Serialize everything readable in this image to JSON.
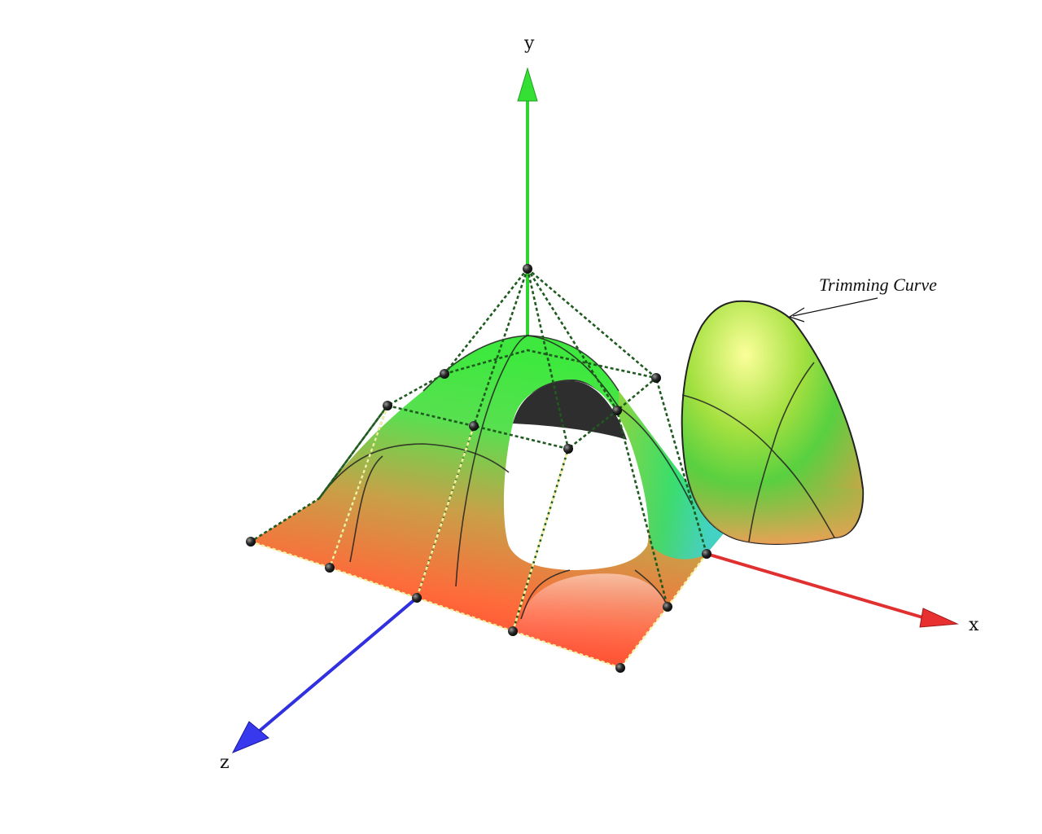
{
  "axes": {
    "x_label": "x",
    "y_label": "y",
    "z_label": "z",
    "x_color": "#e03030",
    "y_color": "#30d030",
    "z_color": "#3030e0"
  },
  "annotation": {
    "text": "Trimming Curve"
  },
  "colors": {
    "surface_low": "#ff3a2a",
    "surface_mid": "#d8a040",
    "surface_high": "#3fe83f",
    "surface_accent": "#30d8d8",
    "control_point": "#1a1a1a",
    "control_net": "#1f5a1f",
    "hole_shadow": "#333333"
  },
  "icons": {
    "control_point": "sphere-point"
  }
}
